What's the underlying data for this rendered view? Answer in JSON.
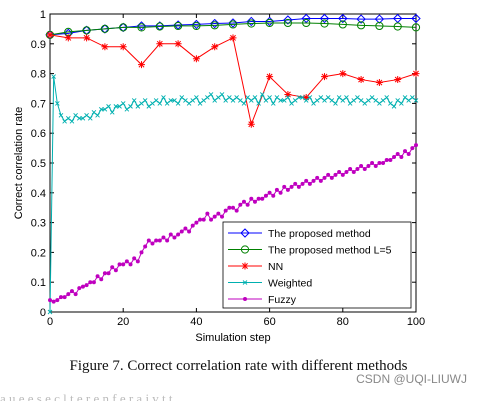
{
  "figure": {
    "caption": "Figure 7.   Correct correlation rate with different methods",
    "watermark": "CSDN @UQI-LIUWJ",
    "trailing_text": "a  u  e  e  s  e  c  l  t  e  r  e  n  f  e  r  a  i  v  t  t"
  },
  "chart_data": {
    "type": "line",
    "title": "",
    "xlabel": "Simulation step",
    "ylabel": "Correct correlation rate",
    "xlim": [
      0,
      100
    ],
    "ylim": [
      0,
      1
    ],
    "xticks": [
      0,
      20,
      40,
      60,
      80,
      100
    ],
    "yticks": [
      0,
      0.1,
      0.2,
      0.3,
      0.4,
      0.5,
      0.6,
      0.7,
      0.8,
      0.9,
      1
    ],
    "ytick_labels": [
      "0",
      "0.1",
      "0.2",
      "0.3",
      "0.4",
      "0.5",
      "0.6",
      "0.7",
      "0.8",
      "0.9",
      "1"
    ],
    "grid": false,
    "legend_position": "bottom-right",
    "series": [
      {
        "name": "The proposed method",
        "color": "#0000ff",
        "marker": "diamond",
        "x": [
          0,
          5,
          10,
          15,
          20,
          25,
          30,
          35,
          40,
          45,
          50,
          55,
          60,
          65,
          70,
          75,
          80,
          85,
          90,
          95,
          100
        ],
        "y": [
          0.93,
          0.935,
          0.945,
          0.95,
          0.955,
          0.96,
          0.96,
          0.963,
          0.965,
          0.968,
          0.97,
          0.975,
          0.975,
          0.98,
          0.985,
          0.985,
          0.985,
          0.983,
          0.983,
          0.985,
          0.985
        ]
      },
      {
        "name": "The proposed method L=5",
        "color": "#008000",
        "marker": "circle",
        "x": [
          0,
          5,
          10,
          15,
          20,
          25,
          30,
          35,
          40,
          45,
          50,
          55,
          60,
          65,
          70,
          75,
          80,
          85,
          90,
          95,
          100
        ],
        "y": [
          0.93,
          0.94,
          0.945,
          0.95,
          0.955,
          0.955,
          0.958,
          0.96,
          0.96,
          0.962,
          0.965,
          0.968,
          0.97,
          0.97,
          0.97,
          0.968,
          0.965,
          0.962,
          0.96,
          0.958,
          0.955
        ]
      },
      {
        "name": "NN",
        "color": "#ff0000",
        "marker": "star",
        "x": [
          0,
          5,
          10,
          15,
          20,
          25,
          30,
          35,
          40,
          45,
          50,
          55,
          60,
          65,
          70,
          75,
          80,
          85,
          90,
          95,
          100
        ],
        "y": [
          0.93,
          0.92,
          0.92,
          0.89,
          0.89,
          0.83,
          0.9,
          0.9,
          0.85,
          0.89,
          0.92,
          0.63,
          0.79,
          0.73,
          0.72,
          0.79,
          0.8,
          0.78,
          0.77,
          0.78,
          0.8
        ]
      },
      {
        "name": "Weighted",
        "color": "#00b0b0",
        "marker": "x",
        "x": [
          0,
          1,
          2,
          3,
          4,
          5,
          6,
          7,
          8,
          9,
          10,
          11,
          12,
          13,
          14,
          15,
          16,
          17,
          18,
          19,
          20,
          21,
          22,
          23,
          24,
          25,
          26,
          27,
          28,
          29,
          30,
          31,
          32,
          33,
          34,
          35,
          36,
          37,
          38,
          39,
          40,
          41,
          42,
          43,
          44,
          45,
          46,
          47,
          48,
          49,
          50,
          51,
          52,
          53,
          54,
          55,
          56,
          57,
          58,
          59,
          60,
          61,
          62,
          63,
          64,
          65,
          66,
          67,
          68,
          69,
          70,
          71,
          72,
          73,
          74,
          75,
          76,
          77,
          78,
          79,
          80,
          81,
          82,
          83,
          84,
          85,
          86,
          87,
          88,
          89,
          90,
          91,
          92,
          93,
          94,
          95,
          96,
          97,
          98,
          99,
          100
        ],
        "y": [
          0.0,
          0.79,
          0.7,
          0.66,
          0.64,
          0.65,
          0.64,
          0.66,
          0.65,
          0.65,
          0.66,
          0.65,
          0.67,
          0.66,
          0.68,
          0.68,
          0.69,
          0.67,
          0.69,
          0.69,
          0.7,
          0.68,
          0.69,
          0.71,
          0.69,
          0.7,
          0.71,
          0.69,
          0.7,
          0.71,
          0.7,
          0.72,
          0.7,
          0.71,
          0.71,
          0.7,
          0.72,
          0.71,
          0.7,
          0.71,
          0.72,
          0.7,
          0.71,
          0.72,
          0.73,
          0.71,
          0.72,
          0.73,
          0.71,
          0.72,
          0.71,
          0.72,
          0.71,
          0.7,
          0.72,
          0.71,
          0.72,
          0.7,
          0.73,
          0.71,
          0.72,
          0.7,
          0.72,
          0.71,
          0.71,
          0.72,
          0.7,
          0.71,
          0.72,
          0.72,
          0.71,
          0.72,
          0.7,
          0.71,
          0.72,
          0.71,
          0.72,
          0.71,
          0.7,
          0.72,
          0.71,
          0.72,
          0.7,
          0.71,
          0.72,
          0.71,
          0.7,
          0.71,
          0.72,
          0.71,
          0.7,
          0.71,
          0.72,
          0.7,
          0.69,
          0.71,
          0.7,
          0.72,
          0.71,
          0.72,
          0.71
        ]
      },
      {
        "name": "Fuzzy",
        "color": "#bf00bf",
        "marker": "dot",
        "x": [
          0,
          1,
          2,
          3,
          4,
          5,
          6,
          7,
          8,
          9,
          10,
          11,
          12,
          13,
          14,
          15,
          16,
          17,
          18,
          19,
          20,
          21,
          22,
          23,
          24,
          25,
          26,
          27,
          28,
          29,
          30,
          31,
          32,
          33,
          34,
          35,
          36,
          37,
          38,
          39,
          40,
          41,
          42,
          43,
          44,
          45,
          46,
          47,
          48,
          49,
          50,
          51,
          52,
          53,
          54,
          55,
          56,
          57,
          58,
          59,
          60,
          61,
          62,
          63,
          64,
          65,
          66,
          67,
          68,
          69,
          70,
          71,
          72,
          73,
          74,
          75,
          76,
          77,
          78,
          79,
          80,
          81,
          82,
          83,
          84,
          85,
          86,
          87,
          88,
          89,
          90,
          91,
          92,
          93,
          94,
          95,
          96,
          97,
          98,
          99,
          100
        ],
        "y": [
          0.04,
          0.035,
          0.04,
          0.05,
          0.05,
          0.06,
          0.07,
          0.06,
          0.08,
          0.085,
          0.09,
          0.1,
          0.1,
          0.12,
          0.11,
          0.13,
          0.13,
          0.15,
          0.14,
          0.16,
          0.16,
          0.17,
          0.16,
          0.18,
          0.17,
          0.2,
          0.22,
          0.24,
          0.23,
          0.24,
          0.24,
          0.25,
          0.24,
          0.26,
          0.25,
          0.26,
          0.27,
          0.28,
          0.27,
          0.29,
          0.3,
          0.31,
          0.31,
          0.33,
          0.31,
          0.32,
          0.33,
          0.32,
          0.34,
          0.35,
          0.35,
          0.34,
          0.36,
          0.37,
          0.36,
          0.38,
          0.37,
          0.38,
          0.38,
          0.39,
          0.4,
          0.39,
          0.41,
          0.4,
          0.42,
          0.41,
          0.42,
          0.43,
          0.42,
          0.43,
          0.44,
          0.43,
          0.44,
          0.45,
          0.44,
          0.45,
          0.46,
          0.45,
          0.46,
          0.47,
          0.46,
          0.47,
          0.48,
          0.47,
          0.48,
          0.49,
          0.48,
          0.49,
          0.5,
          0.49,
          0.5,
          0.5,
          0.51,
          0.51,
          0.52,
          0.53,
          0.52,
          0.54,
          0.53,
          0.55,
          0.56
        ]
      }
    ]
  }
}
